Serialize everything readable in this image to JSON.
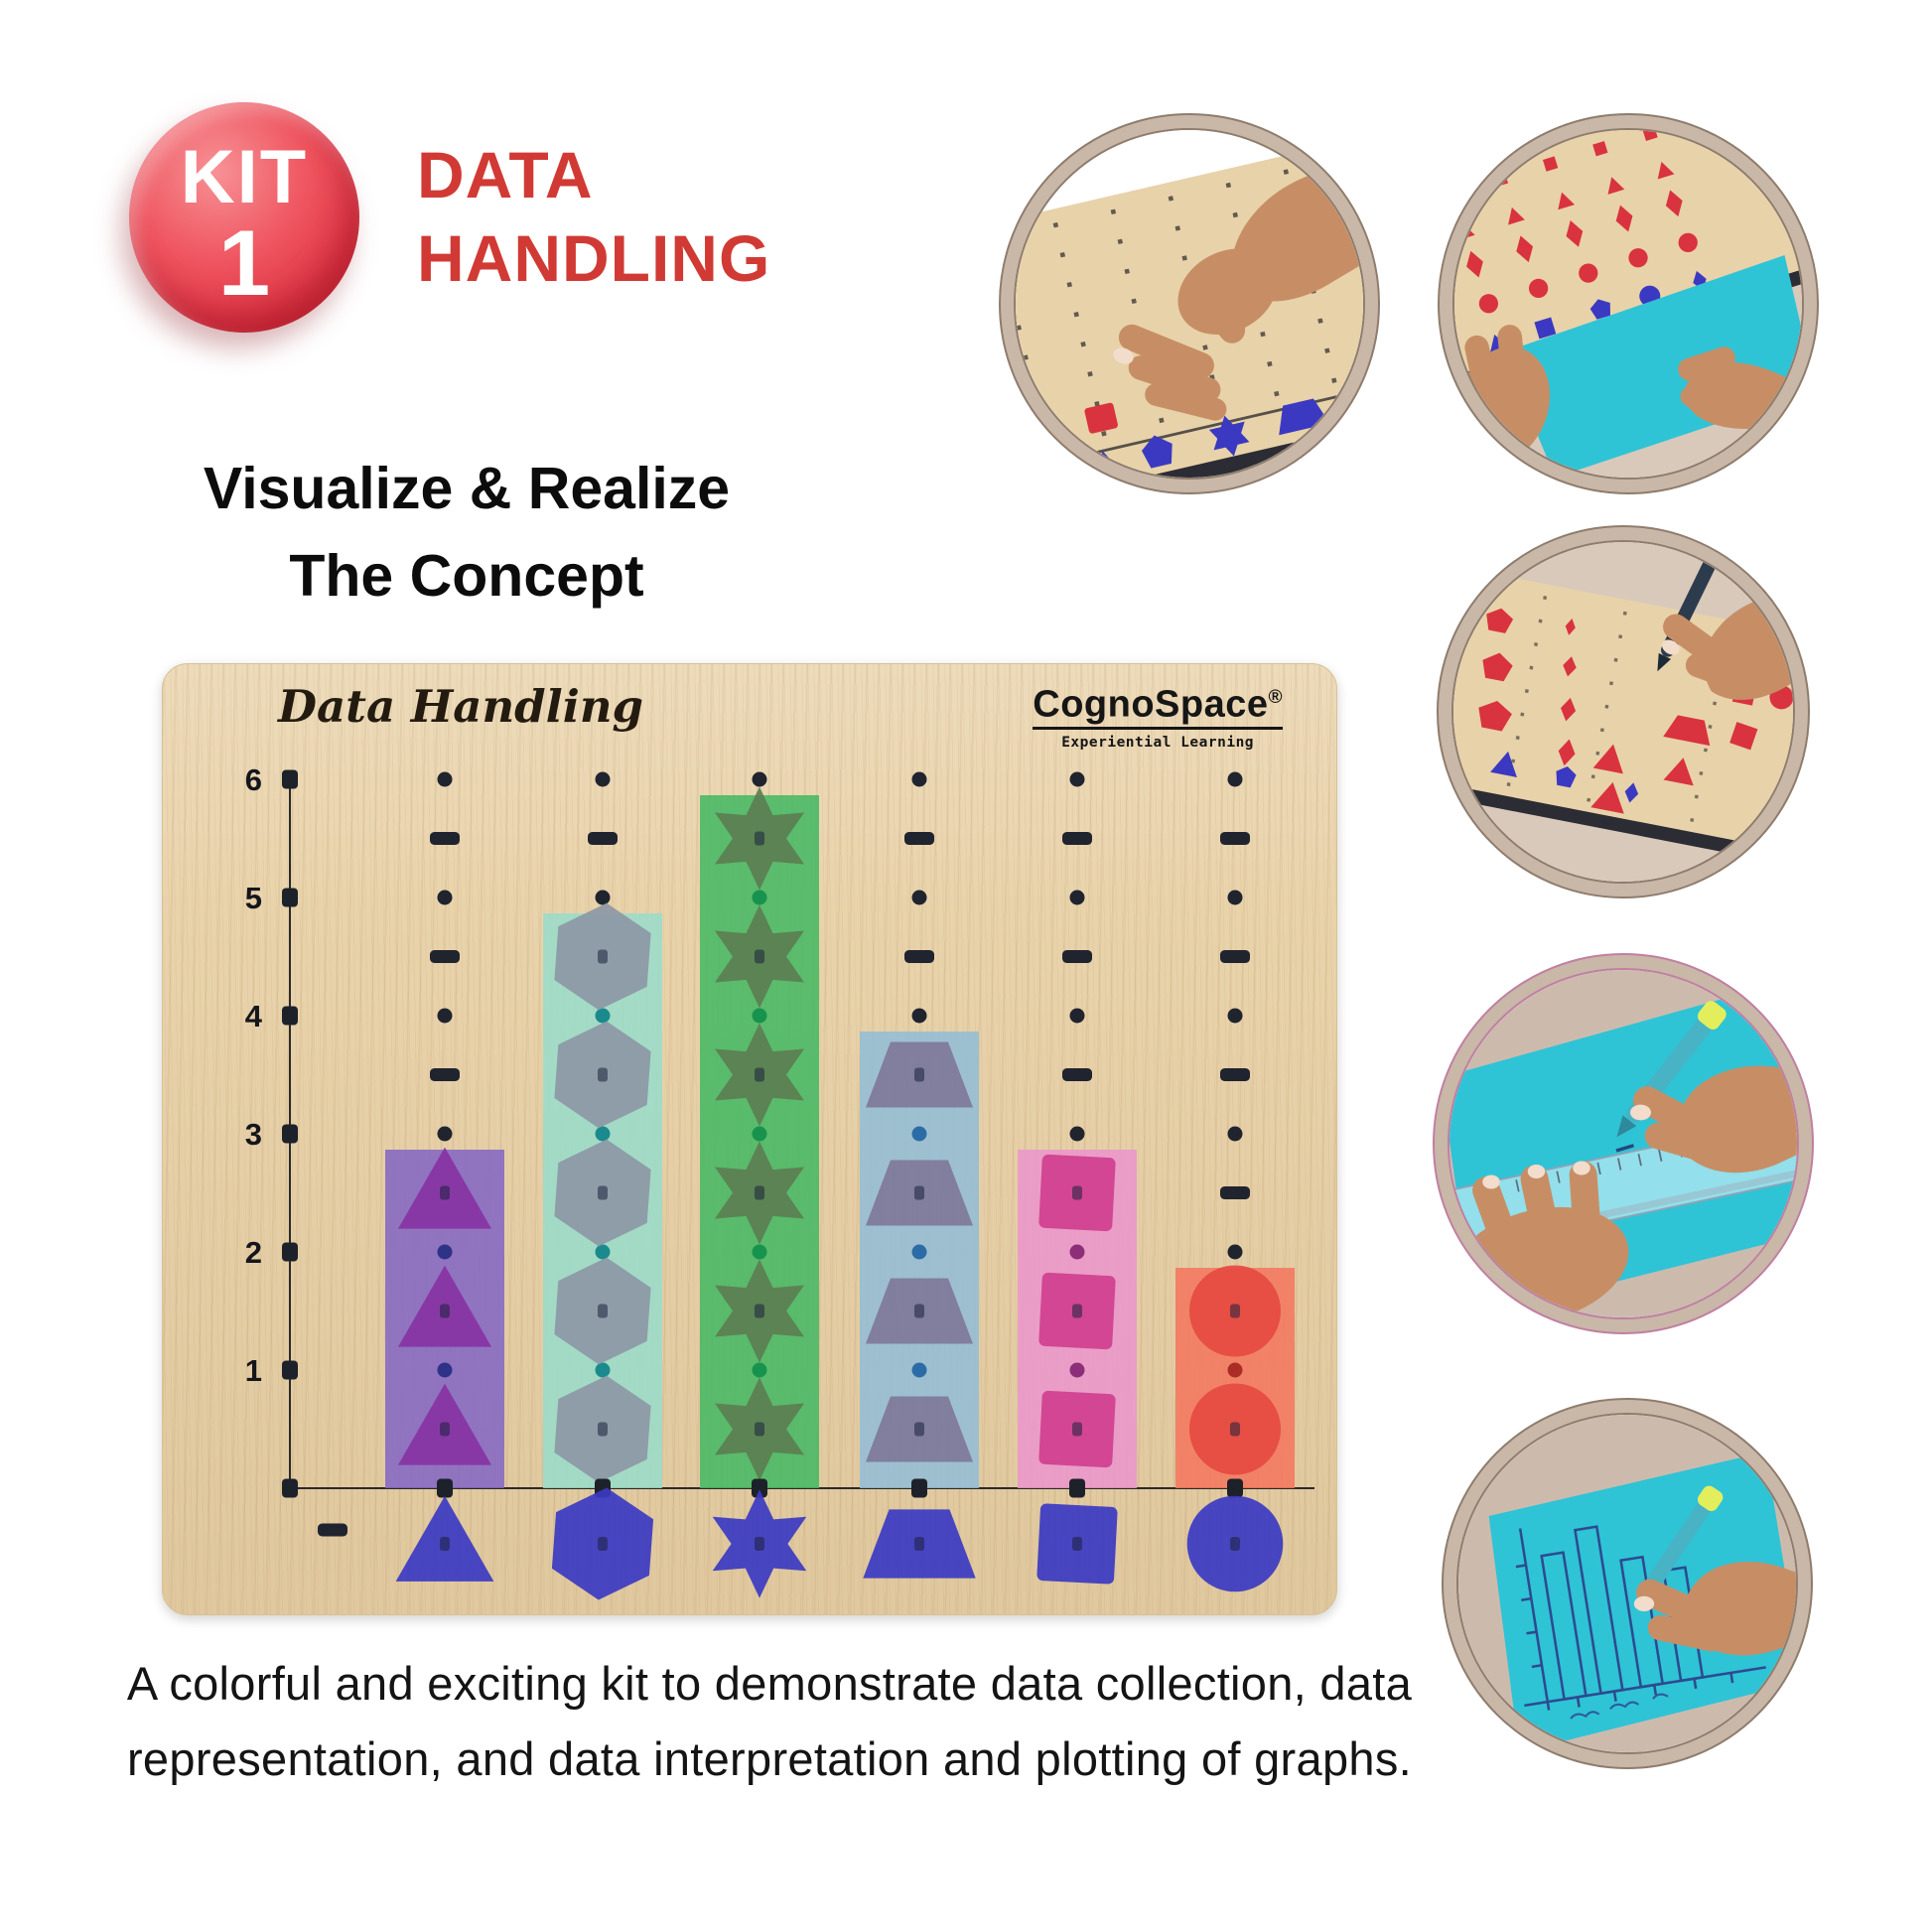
{
  "badge": {
    "kit_label": "KIT",
    "kit_number": "1"
  },
  "title": {
    "line1": "DATA",
    "line2": "HANDLING"
  },
  "tagline": {
    "line1": "Visualize & Realize",
    "line2": "The Concept"
  },
  "board": {
    "title": "Data Handling",
    "brand": "CognoSpace",
    "brand_reg": "®",
    "brand_tagline": "Experiential Learning",
    "y_labels": [
      "6",
      "5",
      "4",
      "3",
      "2",
      "1"
    ]
  },
  "chart_data": {
    "type": "bar",
    "variant": "pictograph-pegboard",
    "title": "Data Handling",
    "categories": [
      "triangle",
      "hexagon",
      "star",
      "trapezoid",
      "square",
      "circle"
    ],
    "values": [
      3,
      5,
      6,
      4,
      3,
      2
    ],
    "ylim": [
      0,
      6
    ],
    "y_ticks": [
      1,
      2,
      3,
      4,
      5,
      6
    ],
    "bar_colors": [
      "#8468c4",
      "#9adcc9",
      "#45b863",
      "#93bdd6",
      "#ea96cc",
      "#f4775f"
    ],
    "shape_colors": [
      "#8833a3",
      "#8c98a5",
      "#5c7e52",
      "#7f7899",
      "#cf3f8e",
      "#e64a41"
    ],
    "inner_hole_colors": [
      "#2e3387",
      "#1a8a8f",
      "#17934d",
      "#2b6ca6",
      "#8c2e78",
      "#aa2d26"
    ],
    "category_marker_color": "#3b39c2",
    "grid": false,
    "legend": "none"
  },
  "photos": [
    {
      "alt": "hand placing a red square piece on the pegboard"
    },
    {
      "alt": "hands pulling a cyan sheet from under a board filled with red and blue shapes"
    },
    {
      "alt": "hand with a pen counting red shapes arranged in columns on the board"
    },
    {
      "alt": "hands drawing a line on cyan paper using a transparent ruler and teal pen"
    },
    {
      "alt": "hand drawing a bar graph on cyan paper with a teal pen"
    }
  ],
  "description": {
    "line1": "A colorful and exciting kit to demonstrate data collection, data",
    "line2": "representation, and data interpretation and plotting of graphs."
  },
  "palette": {
    "wood": "#e8d2a9",
    "board_edge": "#2c2c34",
    "skin": "#c78e65",
    "nail": "#f2dccb",
    "cyan_sheet": "#2fc3d6",
    "red_piece": "#d9333f",
    "blue_piece": "#3b39c2",
    "pen_teal": "#47b3c4",
    "pen_tip": "#e3ee5d",
    "pen_dark": "#2c3c4c",
    "ring": "#c9b7a8",
    "ring_line": "#8e7c6d",
    "ring_line_pink": "#c07fa2",
    "photo_bg": "#d8c9bb",
    "photo_bg2": "#ccbbad",
    "badge_red": "#e23a44",
    "title_red": "#d13a34"
  }
}
